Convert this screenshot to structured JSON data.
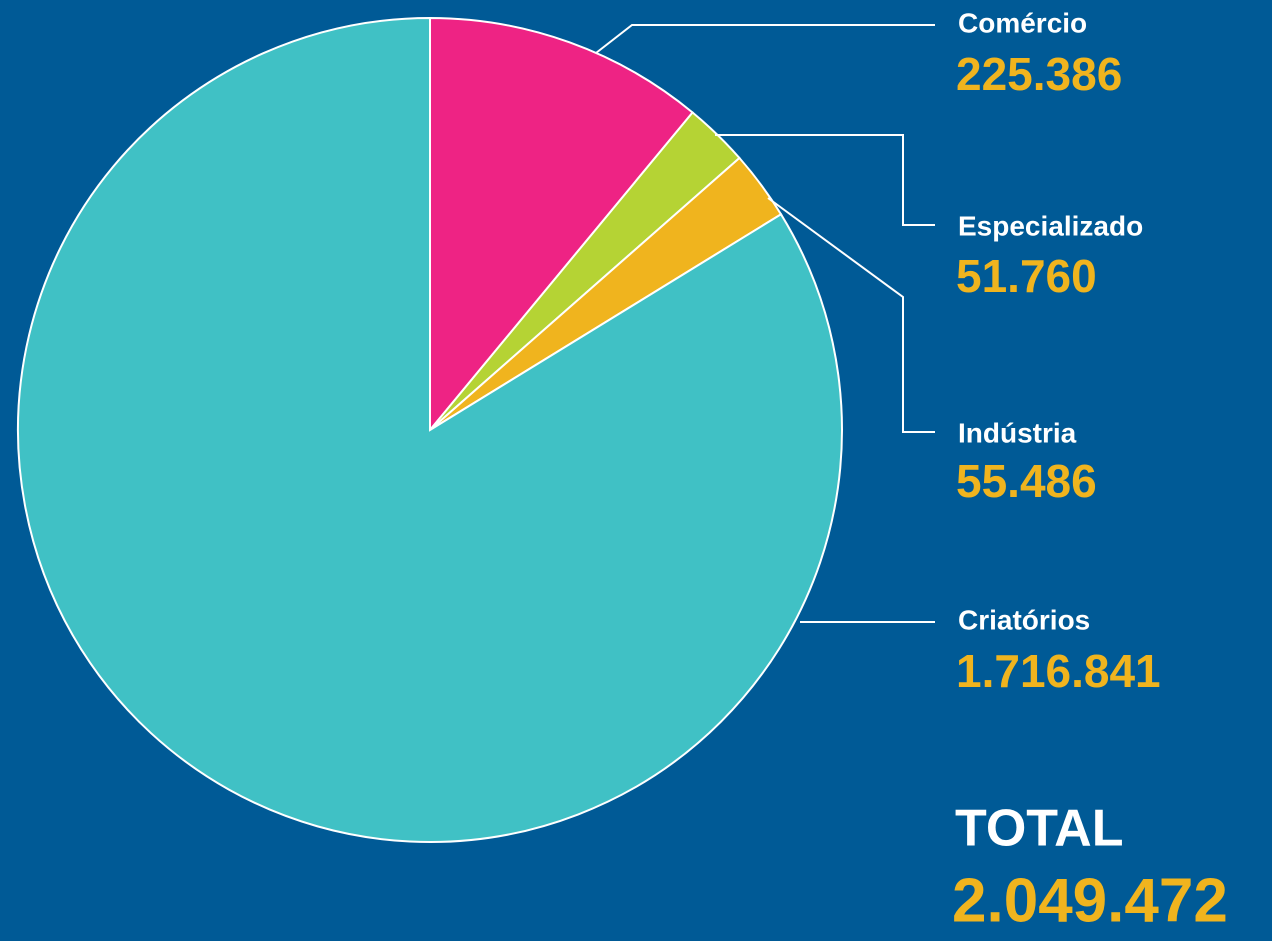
{
  "chart_data": {
    "type": "pie",
    "categories": [
      "Comércio",
      "Especializado",
      "Indústria",
      "Criatórios"
    ],
    "values": [
      225386,
      51760,
      55486,
      1716841
    ],
    "value_labels": [
      "225.386",
      "51.760",
      "55.486",
      "1.716.841"
    ],
    "colors": [
      "#ee2384",
      "#b5d334",
      "#f0b41e",
      "#40c1c5"
    ],
    "total_label": "TOTAL",
    "total_value_label": "2.049.472"
  }
}
